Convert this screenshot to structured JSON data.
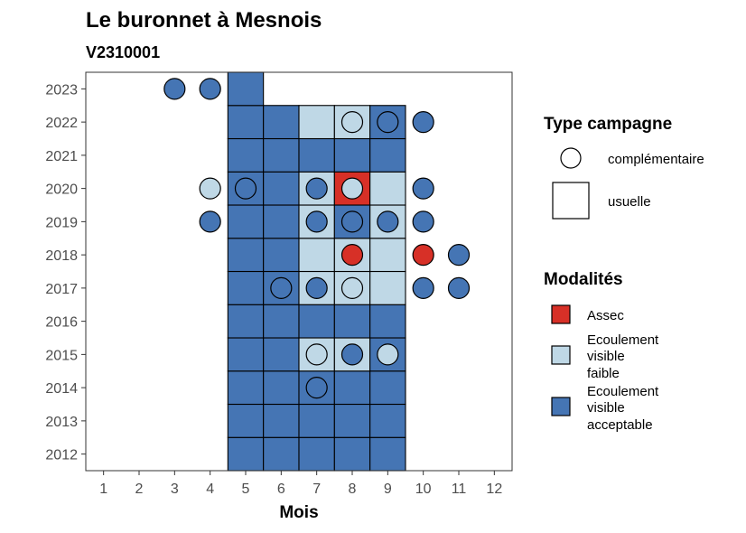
{
  "chart_data": {
    "type": "heatmap",
    "title": "Le buronnet à Mesnois",
    "subtitle": "V2310001",
    "xlabel": "Mois",
    "ylabel": "",
    "x_ticks": [
      "1",
      "2",
      "3",
      "4",
      "5",
      "6",
      "7",
      "8",
      "9",
      "10",
      "11",
      "12"
    ],
    "y_ticks": [
      "2012",
      "2013",
      "2014",
      "2015",
      "2016",
      "2017",
      "2018",
      "2019",
      "2020",
      "2021",
      "2022",
      "2023"
    ],
    "xlim": [
      0.5,
      12.5
    ],
    "ylim": [
      2011.5,
      2023.5
    ],
    "grid": false,
    "legends": {
      "type_campagne": {
        "title": "Type campagne",
        "items": [
          {
            "label": "complémentaire",
            "shape": "circle"
          },
          {
            "label": "usuelle",
            "shape": "square"
          }
        ]
      },
      "modalites": {
        "title": "Modalités",
        "items": [
          {
            "key": "A",
            "lines": [
              "Assec"
            ],
            "color": "#d73027"
          },
          {
            "key": "F",
            "lines": [
              "Ecoulement",
              "visible",
              "faible"
            ],
            "color": "#bfd8e6"
          },
          {
            "key": "E",
            "lines": [
              "Ecoulement",
              "visible",
              "acceptable"
            ],
            "color": "#4575b4"
          }
        ]
      }
    },
    "usuelle": [
      {
        "year": 2012,
        "months": [
          "E",
          "E",
          "E",
          "E",
          "E"
        ]
      },
      {
        "year": 2013,
        "months": [
          "E",
          "E",
          "E",
          "E",
          "E"
        ]
      },
      {
        "year": 2014,
        "months": [
          "E",
          "E",
          "E",
          "E",
          "E"
        ]
      },
      {
        "year": 2015,
        "months": [
          "E",
          "E",
          "F",
          "F",
          "E"
        ]
      },
      {
        "year": 2016,
        "months": [
          "E",
          "E",
          "E",
          "E",
          "E"
        ]
      },
      {
        "year": 2017,
        "months": [
          "E",
          "E",
          "F",
          "F",
          "F"
        ]
      },
      {
        "year": 2018,
        "months": [
          "E",
          "E",
          "F",
          "F",
          "F"
        ]
      },
      {
        "year": 2019,
        "months": [
          "E",
          "E",
          "F",
          "E",
          "F"
        ]
      },
      {
        "year": 2020,
        "months": [
          "E",
          "E",
          "F",
          "A",
          "F"
        ]
      },
      {
        "year": 2021,
        "months": [
          "E",
          "E",
          "E",
          "E",
          "E"
        ]
      },
      {
        "year": 2022,
        "months": [
          "E",
          "E",
          "F",
          "F",
          "E"
        ]
      },
      {
        "year": 2023,
        "months": [
          "E"
        ]
      }
    ],
    "usuelle_start_month": 5,
    "complementaire": [
      {
        "year": 2023,
        "month": 3,
        "mod": "E"
      },
      {
        "year": 2023,
        "month": 4,
        "mod": "E"
      },
      {
        "year": 2022,
        "month": 8,
        "mod": "F"
      },
      {
        "year": 2022,
        "month": 9,
        "mod": "E"
      },
      {
        "year": 2022,
        "month": 10,
        "mod": "E"
      },
      {
        "year": 2020,
        "month": 4,
        "mod": "F"
      },
      {
        "year": 2020,
        "month": 5,
        "mod": "E"
      },
      {
        "year": 2020,
        "month": 7,
        "mod": "E"
      },
      {
        "year": 2020,
        "month": 8,
        "mod": "F"
      },
      {
        "year": 2020,
        "month": 10,
        "mod": "E"
      },
      {
        "year": 2019,
        "month": 4,
        "mod": "E"
      },
      {
        "year": 2019,
        "month": 7,
        "mod": "E"
      },
      {
        "year": 2019,
        "month": 8,
        "mod": "E"
      },
      {
        "year": 2019,
        "month": 9,
        "mod": "E"
      },
      {
        "year": 2019,
        "month": 10,
        "mod": "E"
      },
      {
        "year": 2018,
        "month": 8,
        "mod": "A"
      },
      {
        "year": 2018,
        "month": 10,
        "mod": "A"
      },
      {
        "year": 2018,
        "month": 11,
        "mod": "E"
      },
      {
        "year": 2017,
        "month": 6,
        "mod": "E"
      },
      {
        "year": 2017,
        "month": 7,
        "mod": "E"
      },
      {
        "year": 2017,
        "month": 8,
        "mod": "F"
      },
      {
        "year": 2017,
        "month": 10,
        "mod": "E"
      },
      {
        "year": 2017,
        "month": 11,
        "mod": "E"
      },
      {
        "year": 2015,
        "month": 7,
        "mod": "F"
      },
      {
        "year": 2015,
        "month": 8,
        "mod": "E"
      },
      {
        "year": 2015,
        "month": 9,
        "mod": "F"
      },
      {
        "year": 2014,
        "month": 7,
        "mod": "E"
      }
    ]
  }
}
